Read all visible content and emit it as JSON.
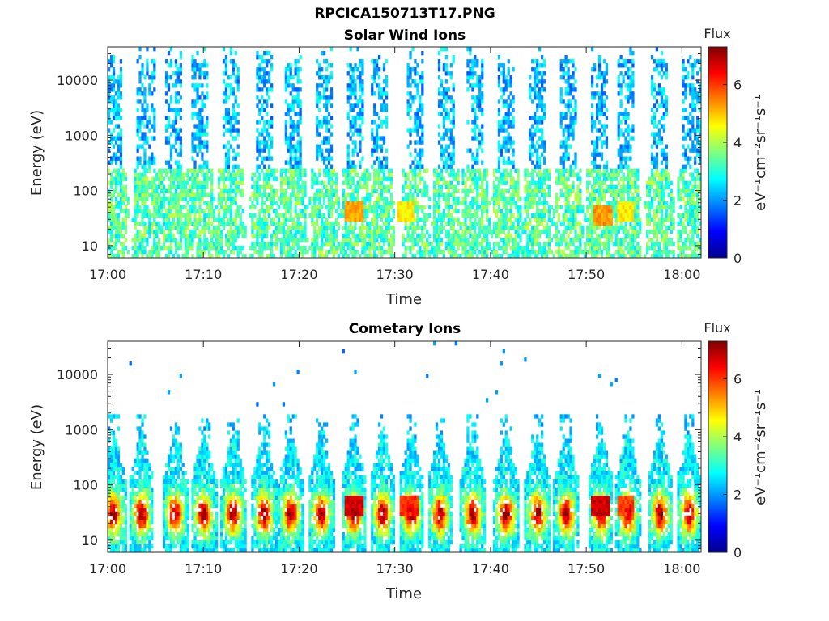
{
  "figure_title": "RPCICA150713T17.PNG",
  "chart_data": [
    {
      "type": "heatmap",
      "title": "Solar Wind Ions",
      "xlabel": "Time",
      "ylabel": "Energy (eV)",
      "x_ticks": [
        "17:00",
        "17:10",
        "17:20",
        "17:30",
        "17:40",
        "17:50",
        "18:00"
      ],
      "xlim": [
        "17:00",
        "18:02"
      ],
      "y_scale": "log",
      "y_ticks": [
        "10",
        "100",
        "1000",
        "10000"
      ],
      "ylim": [
        6,
        40000
      ],
      "colorbar": {
        "label": "Flux",
        "unit": "eV⁻¹cm⁻²sr⁻¹s⁻¹",
        "range": [
          0,
          7.3
        ],
        "ticks": [
          "0",
          "2",
          "4",
          "6"
        ],
        "colormap": "jet"
      },
      "sweep_center_minutes": [
        0.5,
        3.9,
        6.8,
        9.5,
        12.8,
        16.2,
        19.2,
        22.5,
        25.8,
        28.2,
        32.0,
        35.2,
        38.2,
        41.5,
        44.8,
        48.0,
        51.2,
        54.0,
        57.5,
        60.9
      ],
      "features": {
        "high_energy_flux_range": [
          1.5,
          3.0
        ],
        "low_energy_flux_range": [
          2.5,
          4.2
        ],
        "peak_bands": [
          {
            "center_minutes": 25.6,
            "energy_eV": 40,
            "flux": 5.5
          },
          {
            "center_minutes": 31.0,
            "energy_eV": 45,
            "flux": 5.0
          },
          {
            "center_minutes": 51.6,
            "energy_eV": 38,
            "flux": 5.6
          },
          {
            "center_minutes": 54.0,
            "energy_eV": 40,
            "flux": 5.0
          }
        ]
      }
    },
    {
      "type": "heatmap",
      "title": "Cometary Ions",
      "xlabel": "Time",
      "ylabel": "Energy (eV)",
      "x_ticks": [
        "17:00",
        "17:10",
        "17:20",
        "17:30",
        "17:40",
        "17:50",
        "18:00"
      ],
      "xlim": [
        "17:00",
        "18:02"
      ],
      "y_scale": "log",
      "y_ticks": [
        "10",
        "100",
        "1000",
        "10000"
      ],
      "ylim": [
        6,
        40000
      ],
      "colorbar": {
        "label": "Flux",
        "unit": "eV⁻¹cm⁻²sr⁻¹s⁻¹",
        "range": [
          0,
          7.3
        ],
        "ticks": [
          "0",
          "2",
          "4",
          "6"
        ],
        "colormap": "jet"
      },
      "sweep_center_minutes": [
        0.5,
        3.4,
        6.9,
        9.9,
        13.0,
        16.2,
        19.0,
        22.2,
        25.6,
        28.6,
        31.6,
        34.6,
        38.0,
        41.5,
        44.8,
        47.8,
        51.4,
        54.2,
        57.6,
        60.6
      ],
      "features": {
        "core_energy_eV": 30,
        "core_flux_range": [
          4.5,
          6.5
        ],
        "tail_flux_range": [
          2.0,
          4.0
        ],
        "peak_bands": [
          {
            "center_minutes": 25.6,
            "energy_eV": 40,
            "flux": 7.0
          },
          {
            "center_minutes": 31.4,
            "energy_eV": 40,
            "flux": 6.4
          },
          {
            "center_minutes": 51.4,
            "energy_eV": 40,
            "flux": 7.0
          },
          {
            "center_minutes": 54.0,
            "energy_eV": 40,
            "flux": 6.2
          }
        ]
      }
    }
  ]
}
